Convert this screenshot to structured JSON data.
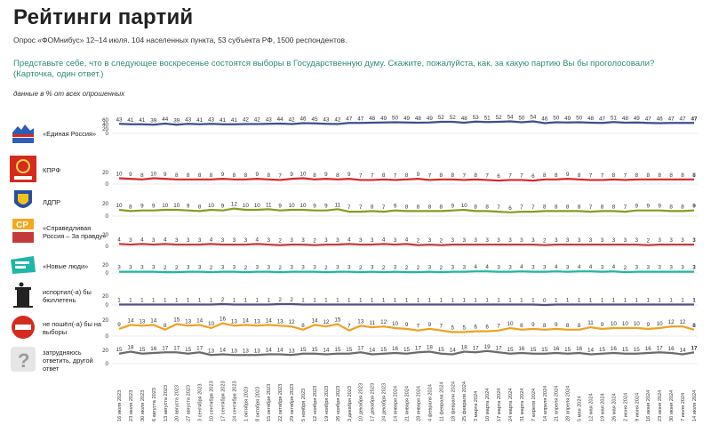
{
  "title": "Рейтинги партий",
  "subtitle": "Опрос «ФОМнибус» 12–14 июля. 104 населенных пункта, 53 субъекта РФ, 1500 респондентов.",
  "question": "Представьте себе, что в следующее воскресенье состоятся выборы в Государственную думу. Скажите, пожалуйста, как, за какую партию Вы бы проголосовали? (Карточка, один ответ.)",
  "note": "данные в % от всех опрошенных",
  "icons": [
    "united-russia-logo",
    "kprf-logo",
    "ldpr-logo",
    "sr-logo",
    "new-people-logo",
    "trash-bin-icon",
    "no-entry-icon",
    "question-mark-icon"
  ],
  "chart_data": {
    "type": "line",
    "ylim": [
      0,
      60
    ],
    "x": [
      "16 июля 2023",
      "23 июля 2023",
      "30 июля 2023",
      "6 августа 2023",
      "13 августа 2023",
      "20 августа 2023",
      "27 августа 2023",
      "3 сентября 2023",
      "10 сентября 2023",
      "17 сентября 2023",
      "24 сентября 2023",
      "1 октября 2023",
      "8 октября 2023",
      "15 октября 2023",
      "22 октября 2023",
      "29 октября 2023",
      "5 ноября 2023",
      "12 ноября 2023",
      "19 ноября 2023",
      "26 ноября 2023",
      "3 декабря 2023",
      "10 декабря 2023",
      "17 декабря 2023",
      "24 декабря 2023",
      "14 января 2024",
      "21 января 2024",
      "28 января 2024",
      "4 февраля 2024",
      "11 февраля 2024",
      "18 февраля 2024",
      "25 февраля 2024",
      "3 марта 2024",
      "10 марта 2024",
      "17 марта 2024",
      "24 марта 2024",
      "31 марта 2024",
      "7 апреля 2024",
      "14 апреля 2024",
      "21 апреля 2024",
      "28 апреля 2024",
      "5 мая 2024",
      "12 мая 2024",
      "19 мая 2024",
      "26 мая 2024",
      "2 июня 2024",
      "9 июня 2024",
      "16 июня 2024",
      "23 июня 2024",
      "30 июня 2024",
      "7 июля 2024",
      "14 июля 2024"
    ],
    "series": [
      {
        "name": "«Единая Россия»",
        "color": "#3d4e8f",
        "values": [
          43,
          41,
          41,
          39,
          44,
          39,
          43,
          41,
          43,
          41,
          41,
          42,
          42,
          43,
          44,
          42,
          46,
          45,
          43,
          42,
          47,
          47,
          48,
          49,
          50,
          49,
          48,
          49,
          52,
          52,
          48,
          53,
          51,
          52,
          54,
          50,
          54,
          46,
          50,
          49,
          50,
          48,
          47,
          51,
          48,
          49,
          47,
          46,
          47,
          47,
          47
        ]
      },
      {
        "name": "КПРФ",
        "color": "#d9262a",
        "values": [
          10,
          9,
          8,
          10,
          9,
          8,
          8,
          8,
          8,
          9,
          8,
          8,
          9,
          8,
          7,
          9,
          10,
          8,
          9,
          8,
          9,
          7,
          7,
          8,
          7,
          8,
          9,
          7,
          8,
          8,
          7,
          8,
          7,
          6,
          7,
          7,
          6,
          8,
          8,
          9,
          8,
          7,
          7,
          8,
          7,
          8,
          8,
          8,
          8,
          8,
          8
        ]
      },
      {
        "name": "ЛДПР",
        "color": "#8a9a1e",
        "values": [
          10,
          8,
          9,
          9,
          10,
          10,
          9,
          8,
          10,
          9,
          12,
          10,
          10,
          11,
          9,
          10,
          10,
          9,
          9,
          11,
          7,
          7,
          8,
          7,
          9,
          8,
          8,
          8,
          8,
          9,
          10,
          8,
          8,
          7,
          6,
          7,
          7,
          8,
          8,
          8,
          8,
          7,
          8,
          8,
          7,
          9,
          9,
          9,
          8,
          8,
          9
        ]
      },
      {
        "name": "«Справедливая Россия – За правду»",
        "color": "#c43a3a",
        "values": [
          4,
          3,
          4,
          3,
          4,
          3,
          3,
          3,
          4,
          3,
          3,
          3,
          4,
          3,
          2,
          3,
          3,
          2,
          3,
          3,
          4,
          3,
          3,
          4,
          3,
          4,
          2,
          3,
          2,
          3,
          3,
          3,
          3,
          3,
          3,
          3,
          3,
          2,
          3,
          3,
          3,
          3,
          3,
          3,
          3,
          3,
          2,
          3,
          3,
          3,
          3
        ]
      },
      {
        "name": "«Новые люди»",
        "color": "#1fb7a6",
        "values": [
          3,
          3,
          3,
          3,
          2,
          2,
          3,
          3,
          2,
          3,
          3,
          2,
          3,
          3,
          2,
          3,
          3,
          3,
          2,
          3,
          3,
          2,
          3,
          2,
          3,
          2,
          2,
          3,
          2,
          3,
          3,
          4,
          4,
          3,
          3,
          4,
          3,
          3,
          4,
          3,
          4,
          4,
          3,
          4,
          2,
          3,
          3,
          3,
          3,
          3,
          3
        ]
      },
      {
        "name": "испортил(-а) бы бюллетень",
        "color": "#5a4a8a",
        "values": [
          1,
          1,
          1,
          1,
          1,
          1,
          1,
          1,
          1,
          2,
          1,
          1,
          1,
          1,
          2,
          2,
          1,
          1,
          1,
          1,
          1,
          1,
          1,
          1,
          1,
          1,
          1,
          1,
          1,
          1,
          1,
          1,
          1,
          1,
          1,
          1,
          1,
          0,
          1,
          1,
          1,
          1,
          1,
          1,
          1,
          1,
          1,
          1,
          1,
          1,
          1
        ]
      },
      {
        "name": "не пошёл(-а) бы на выборы",
        "color": "#f0a020",
        "values": [
          9,
          14,
          13,
          14,
          8,
          15,
          13,
          14,
          10,
          16,
          13,
          14,
          13,
          14,
          13,
          12,
          8,
          14,
          12,
          15,
          7,
          13,
          11,
          12,
          10,
          9,
          7,
          9,
          7,
          5,
          5,
          6,
          6,
          7,
          10,
          8,
          9,
          8,
          9,
          8,
          8,
          11,
          9,
          10,
          10,
          10,
          9,
          10,
          12,
          12,
          8
        ]
      },
      {
        "name": "затрудняюсь ответить, другой ответ",
        "color": "#6b6b6b",
        "values": [
          15,
          18,
          15,
          16,
          17,
          17,
          15,
          17,
          13,
          14,
          13,
          13,
          13,
          14,
          14,
          13,
          15,
          15,
          14,
          15,
          15,
          17,
          14,
          15,
          16,
          15,
          17,
          18,
          15,
          14,
          18,
          17,
          19,
          17,
          15,
          16,
          15,
          15,
          16,
          15,
          16,
          14,
          15,
          16,
          15,
          15,
          16,
          17,
          16,
          14,
          17
        ]
      }
    ]
  },
  "axis_ticks": [
    [
      "60",
      "40",
      "20",
      "0"
    ],
    [
      "20",
      "0"
    ],
    [
      "20",
      "0"
    ],
    [
      "20",
      "0"
    ],
    [
      "20",
      "0"
    ],
    [
      "20",
      "0"
    ],
    [
      "20",
      "0"
    ],
    [
      "20",
      "0"
    ]
  ]
}
